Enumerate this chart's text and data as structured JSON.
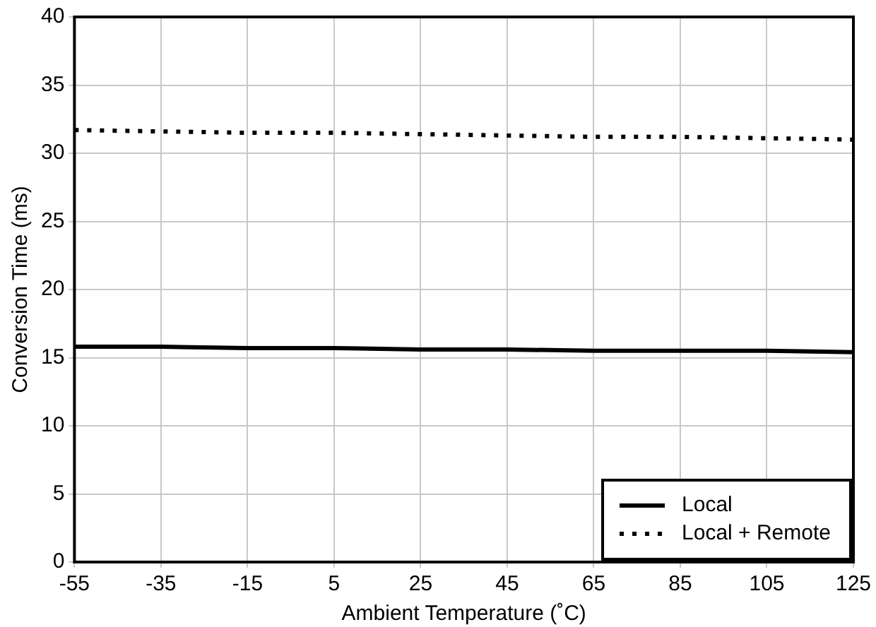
{
  "chart_data": {
    "type": "line",
    "xlabel": "Ambient Temperature (˚C)",
    "ylabel": "Conversion Time (ms)",
    "x": [
      -55,
      -35,
      -15,
      5,
      25,
      45,
      65,
      85,
      105,
      125
    ],
    "series": [
      {
        "name": "Local",
        "color": "#000000",
        "line_style": "solid",
        "values": [
          15.8,
          15.8,
          15.7,
          15.7,
          15.6,
          15.6,
          15.5,
          15.5,
          15.5,
          15.4
        ]
      },
      {
        "name": "Local + Remote",
        "color": "#000000",
        "line_style": "dotted",
        "values": [
          31.7,
          31.6,
          31.5,
          31.5,
          31.4,
          31.3,
          31.2,
          31.2,
          31.1,
          31.0
        ]
      }
    ],
    "xlim": [
      -55,
      125
    ],
    "xticks": [
      -55,
      -35,
      -15,
      5,
      25,
      45,
      65,
      85,
      105,
      125
    ],
    "ylim": [
      0,
      40
    ],
    "yticks": [
      0,
      5,
      10,
      15,
      20,
      25,
      30,
      35,
      40
    ],
    "grid": true,
    "legend": "bottom right",
    "marker": "none"
  }
}
